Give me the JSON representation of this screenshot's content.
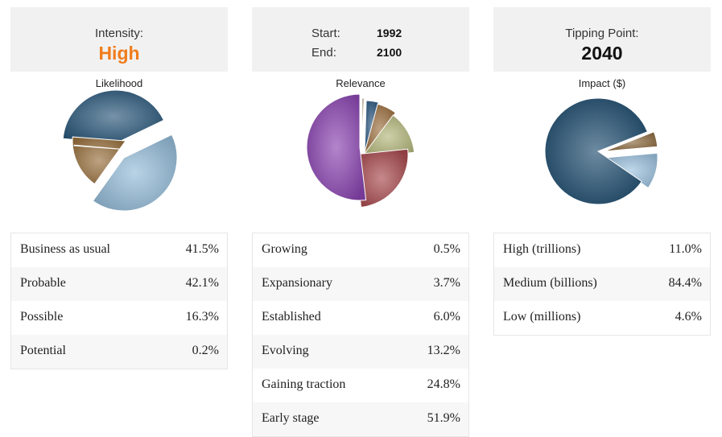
{
  "panels": [
    {
      "header": {
        "label": "Intensity:",
        "value": "High"
      },
      "chart_title": "Likelihood",
      "rows": [
        {
          "name": "Business as usual",
          "pct": "41.5%"
        },
        {
          "name": "Probable",
          "pct": "42.1%"
        },
        {
          "name": "Possible",
          "pct": "16.3%"
        },
        {
          "name": "Potential",
          "pct": "0.2%"
        }
      ]
    },
    {
      "header": {
        "start_label": "Start:",
        "start_value": "1992",
        "end_label": "End:",
        "end_value": "2100"
      },
      "chart_title": "Relevance",
      "rows": [
        {
          "name": "Growing",
          "pct": "0.5%"
        },
        {
          "name": "Expansionary",
          "pct": "3.7%"
        },
        {
          "name": "Established",
          "pct": "6.0%"
        },
        {
          "name": "Evolving",
          "pct": "13.2%"
        },
        {
          "name": "Gaining traction",
          "pct": "24.8%"
        },
        {
          "name": "Early stage",
          "pct": "51.9%"
        }
      ]
    },
    {
      "header": {
        "label": "Tipping Point:",
        "value": "2040"
      },
      "chart_title": "Impact ($)",
      "rows": [
        {
          "name": "High (trillions)",
          "pct": "11.0%"
        },
        {
          "name": "Medium (billions)",
          "pct": "84.4%"
        },
        {
          "name": "Low (millions)",
          "pct": "4.6%"
        }
      ]
    }
  ],
  "colors": {
    "accent_orange": "#f07c1c",
    "header_bg": "#f1f1f1"
  },
  "chart_data": [
    {
      "type": "pie",
      "title": "Likelihood",
      "categories": [
        "Business as usual",
        "Probable",
        "Possible",
        "Potential"
      ],
      "values": [
        41.5,
        42.1,
        16.3,
        0.2
      ],
      "colors": [
        "#2a587a",
        "#94bcd8",
        "#9a7240",
        "#5a4a2a"
      ]
    },
    {
      "type": "pie",
      "title": "Relevance",
      "categories": [
        "Growing",
        "Expansionary",
        "Established",
        "Evolving",
        "Gaining traction",
        "Early stage"
      ],
      "values": [
        0.5,
        3.7,
        6.0,
        13.2,
        24.8,
        51.9
      ],
      "colors": [
        "#8a6a3a",
        "#2f5a82",
        "#9c7040",
        "#b3b67a",
        "#a84a4e",
        "#8a44b0"
      ]
    },
    {
      "type": "pie",
      "title": "Impact ($)",
      "categories": [
        "High (trillions)",
        "Medium (billions)",
        "Low (millions)"
      ],
      "values": [
        11.0,
        84.4,
        4.6
      ],
      "colors": [
        "#9dc2de",
        "#1f4d6e",
        "#8c6a3e"
      ]
    }
  ]
}
